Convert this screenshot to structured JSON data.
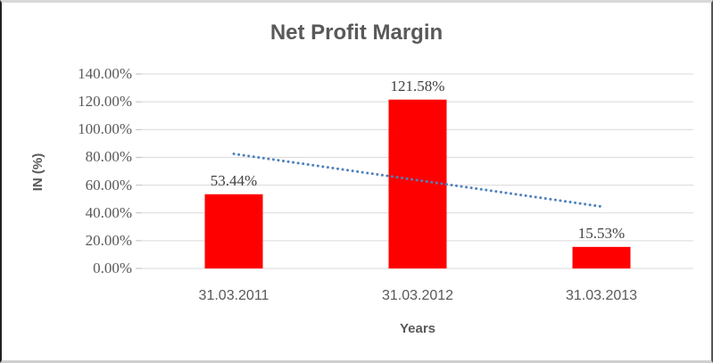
{
  "chart_data": {
    "type": "bar",
    "title": "Net Profit Margin",
    "xlabel": "Years",
    "ylabel": "IN (%)",
    "categories": [
      "31.03.2011",
      "31.03.2012",
      "31.03.2013"
    ],
    "values": [
      53.44,
      121.58,
      15.53
    ],
    "data_labels": [
      "53.44%",
      "121.58%",
      "15.53%"
    ],
    "ylim": [
      0,
      140
    ],
    "ytick_step": 20,
    "ytick_labels": [
      "0.00%",
      "20.00%",
      "40.00%",
      "60.00%",
      "80.00%",
      "100.00%",
      "120.00%",
      "140.00%"
    ],
    "grid": true,
    "legend": "none",
    "bar_color": "#ff0000",
    "trendline": {
      "type": "linear",
      "style": "dotted",
      "color": "#4f81bd",
      "start_value": 82.5,
      "end_value": 44.6
    },
    "colors": {
      "grid": "#d9d9d9",
      "tick_mark": "#bfbfbf",
      "tick_text": "#595959",
      "title_text": "#595959",
      "data_label_text": "#404040"
    }
  }
}
